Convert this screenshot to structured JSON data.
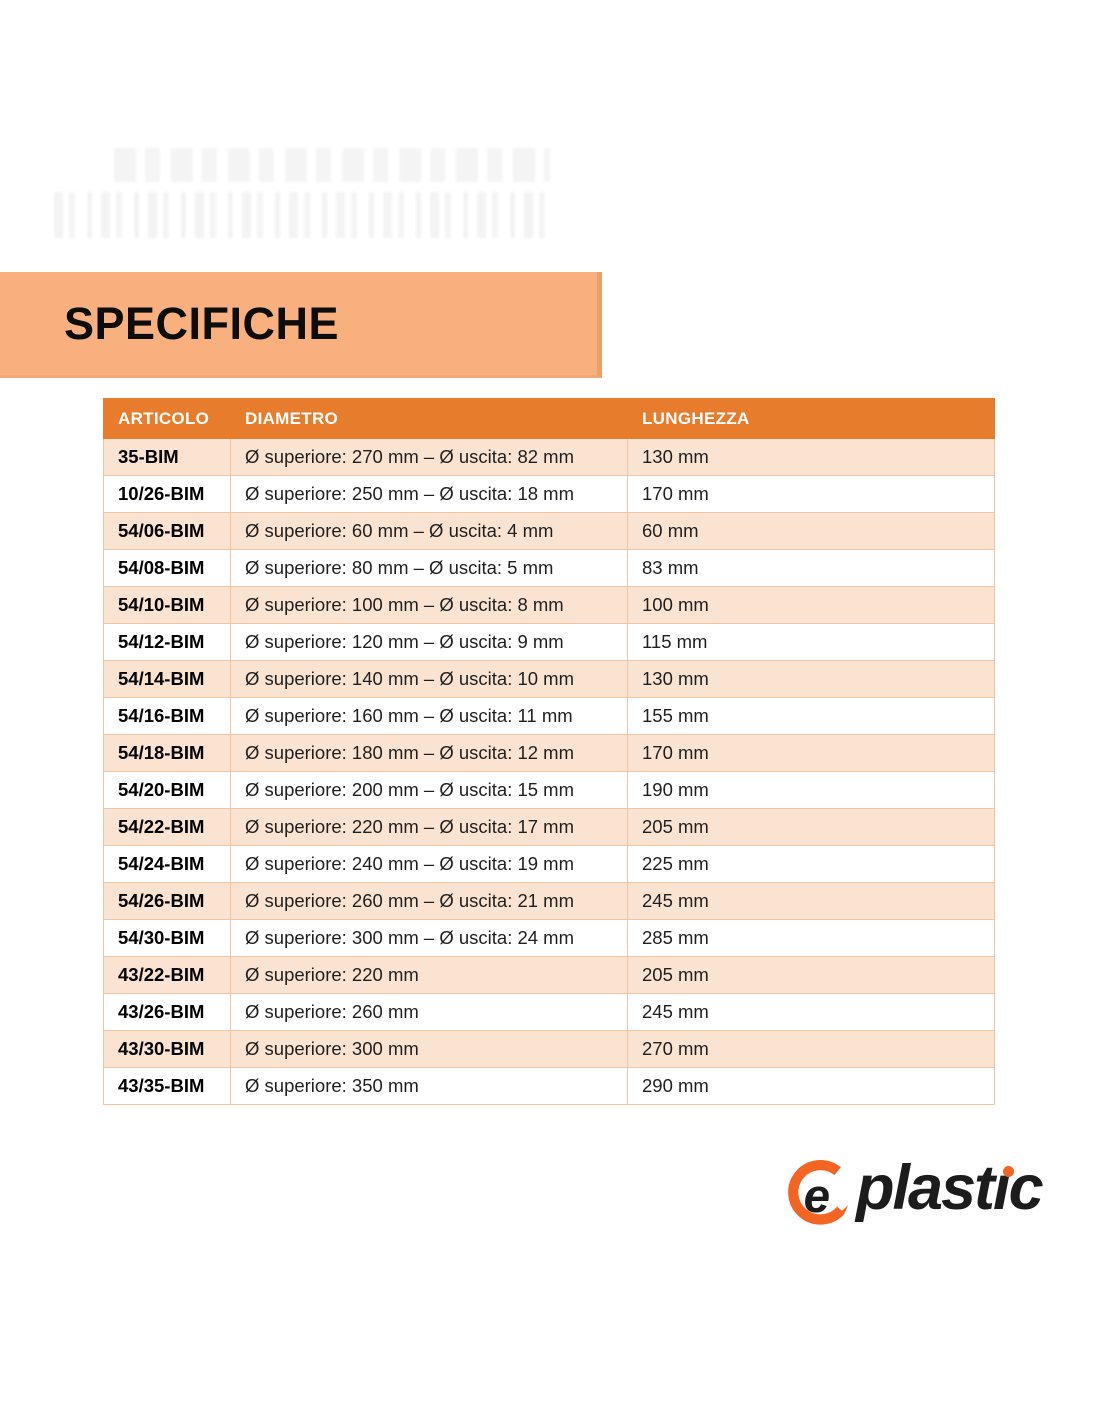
{
  "page": {
    "title": "SPECIFICHE"
  },
  "colors": {
    "accent": "#E87C2D",
    "banner": "#F7B07E",
    "row_tint": "#FBE3D1",
    "table_border": "#F2C5A2",
    "logo_orange": "#F26522",
    "logo_black": "#1c1c1c"
  },
  "table": {
    "headers": [
      "ARTICOLO",
      "DIAMETRO",
      "LUNGHEZZA"
    ],
    "rows": [
      {
        "articolo": "35-BIM",
        "diametro": "Ø superiore: 270 mm – Ø uscita: 82 mm",
        "lunghezza": "130 mm"
      },
      {
        "articolo": "10/26-BIM",
        "diametro": "Ø superiore: 250 mm – Ø uscita: 18 mm",
        "lunghezza": "170 mm"
      },
      {
        "articolo": "54/06-BIM",
        "diametro": "Ø superiore: 60 mm – Ø uscita: 4 mm",
        "lunghezza": "60 mm"
      },
      {
        "articolo": "54/08-BIM",
        "diametro": "Ø superiore: 80 mm – Ø uscita: 5 mm",
        "lunghezza": "83 mm"
      },
      {
        "articolo": "54/10-BIM",
        "diametro": "Ø superiore: 100 mm – Ø uscita: 8 mm",
        "lunghezza": "100 mm"
      },
      {
        "articolo": "54/12-BIM",
        "diametro": "Ø superiore: 120 mm – Ø uscita: 9 mm",
        "lunghezza": "115 mm"
      },
      {
        "articolo": "54/14-BIM",
        "diametro": "Ø superiore: 140 mm – Ø uscita: 10 mm",
        "lunghezza": "130 mm"
      },
      {
        "articolo": "54/16-BIM",
        "diametro": "Ø superiore: 160 mm – Ø uscita: 11 mm",
        "lunghezza": "155 mm"
      },
      {
        "articolo": "54/18-BIM",
        "diametro": "Ø superiore: 180 mm – Ø uscita: 12 mm",
        "lunghezza": "170 mm"
      },
      {
        "articolo": "54/20-BIM",
        "diametro": "Ø superiore: 200 mm – Ø uscita: 15 mm",
        "lunghezza": "190 mm"
      },
      {
        "articolo": "54/22-BIM",
        "diametro": "Ø superiore: 220 mm – Ø uscita: 17 mm",
        "lunghezza": "205 mm"
      },
      {
        "articolo": "54/24-BIM",
        "diametro": "Ø superiore: 240 mm – Ø uscita: 19 mm",
        "lunghezza": "225 mm"
      },
      {
        "articolo": "54/26-BIM",
        "diametro": "Ø superiore: 260 mm – Ø uscita: 21 mm",
        "lunghezza": "245 mm"
      },
      {
        "articolo": "54/30-BIM",
        "diametro": "Ø superiore: 300 mm – Ø uscita: 24 mm",
        "lunghezza": "285 mm"
      },
      {
        "articolo": "43/22-BIM",
        "diametro": "Ø superiore: 220 mm",
        "lunghezza": "205 mm"
      },
      {
        "articolo": "43/26-BIM",
        "diametro": "Ø superiore: 260 mm",
        "lunghezza": "245 mm"
      },
      {
        "articolo": "43/30-BIM",
        "diametro": "Ø superiore: 300 mm",
        "lunghezza": "270 mm"
      },
      {
        "articolo": "43/35-BIM",
        "diametro": "Ø superiore: 350 mm",
        "lunghezza": "290 mm"
      }
    ]
  },
  "logo": {
    "brand": "eplastic",
    "e": "e",
    "part1": "plast",
    "dotless_i": "ı",
    "part2": "c"
  }
}
